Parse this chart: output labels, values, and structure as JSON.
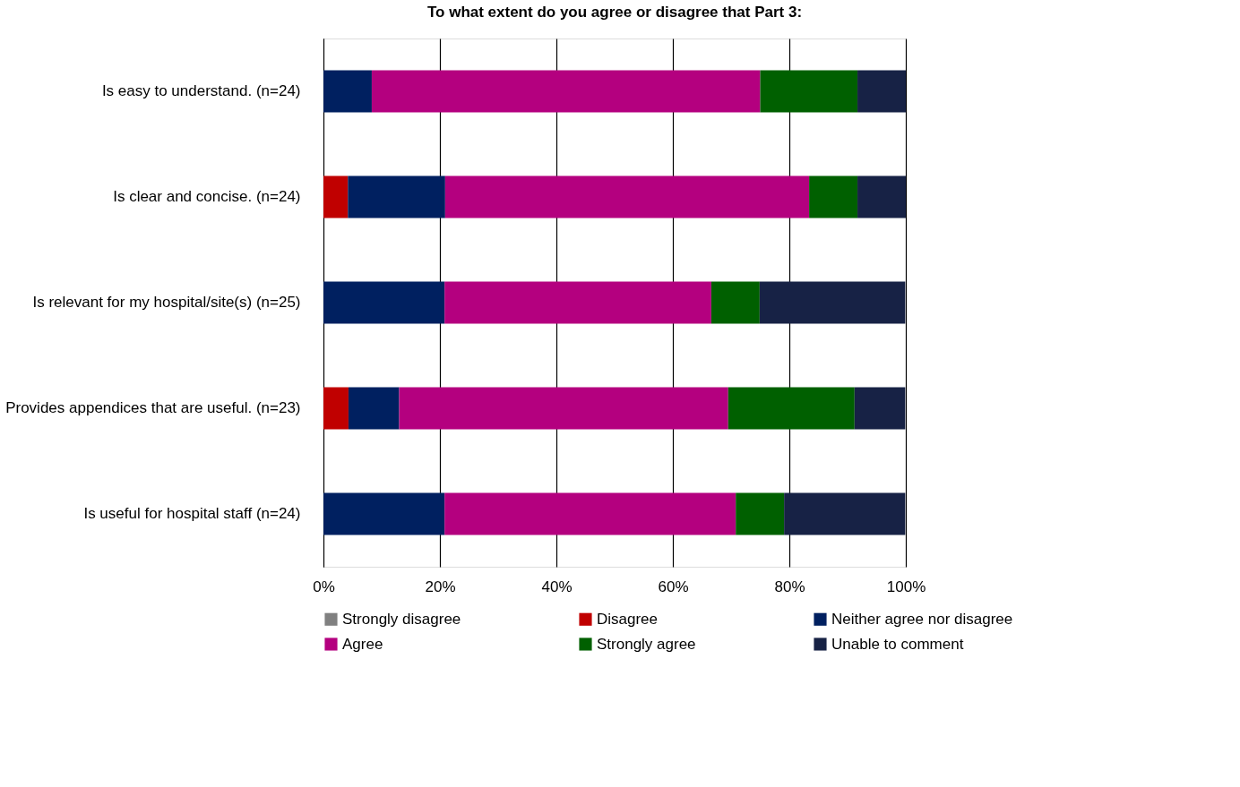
{
  "chart_data": {
    "type": "bar",
    "orientation": "horizontal",
    "stacked": true,
    "title": "To what extent do you agree or disagree that Part 3:",
    "categories": [
      "Is easy to understand. (n=24)",
      "Is clear and concise. (n=24)",
      "Is relevant for my hospital/site(s) (n=25)",
      "Provides appendices that are useful. (n=23)",
      "Is useful for hospital staff (n=24)"
    ],
    "series": [
      {
        "name": "Strongly disagree",
        "color": "#808080",
        "values": [
          0,
          0,
          0,
          0,
          0
        ]
      },
      {
        "name": "Disagree",
        "color": "#c00000",
        "values": [
          0,
          4.2,
          0,
          4.3,
          0
        ]
      },
      {
        "name": "Neither agree nor disagree",
        "color": "#002060",
        "values": [
          8.3,
          16.7,
          20.8,
          8.7,
          20.8
        ]
      },
      {
        "name": "Agree",
        "color": "#b4007f",
        "values": [
          66.7,
          62.5,
          45.8,
          56.5,
          50
        ]
      },
      {
        "name": "Strongly agree",
        "color": "#006000",
        "values": [
          16.7,
          8.3,
          8.3,
          21.7,
          8.3
        ]
      },
      {
        "name": "Unable to comment",
        "color": "#172245",
        "values": [
          8.3,
          8.3,
          25,
          8.7,
          20.8
        ]
      }
    ],
    "xlim": [
      0,
      100
    ],
    "xticks": [
      {
        "value": 0,
        "label": "0%"
      },
      {
        "value": 20,
        "label": "20%"
      },
      {
        "value": 40,
        "label": "40%"
      },
      {
        "value": 60,
        "label": "60%"
      },
      {
        "value": 80,
        "label": "80%"
      },
      {
        "value": 100,
        "label": "100%"
      }
    ],
    "grid": "x",
    "legend": "bottom"
  }
}
